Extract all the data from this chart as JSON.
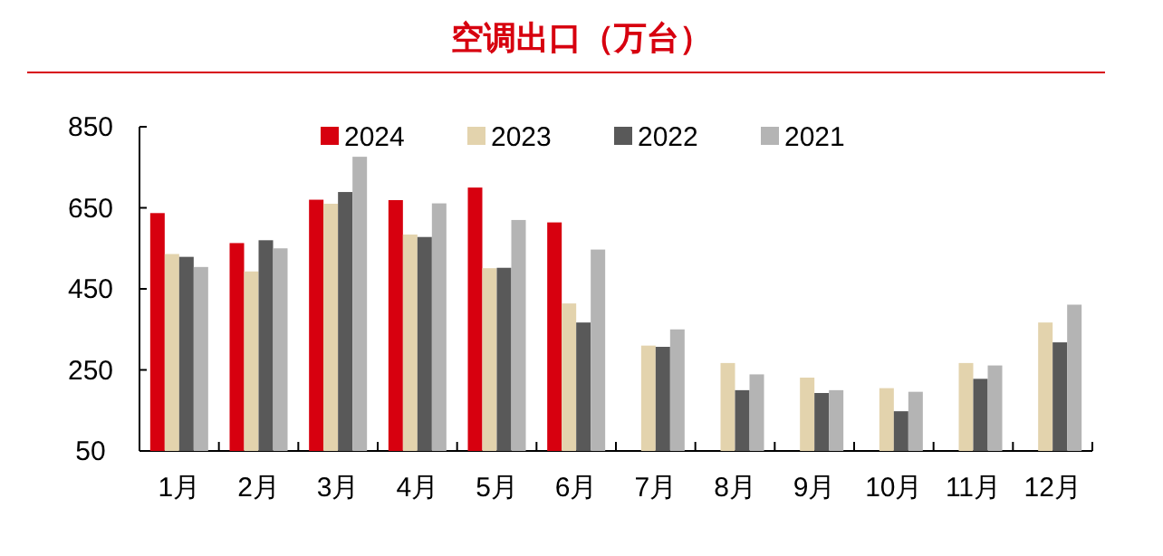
{
  "chart_data": {
    "type": "bar",
    "title": "空调出口（万台）",
    "categories": [
      "1月",
      "2月",
      "3月",
      "4月",
      "5月",
      "6月",
      "7月",
      "8月",
      "9月",
      "10月",
      "11月",
      "12月"
    ],
    "series": [
      {
        "name": "2024",
        "color": "#d7000f",
        "values": [
          637,
          563,
          670,
          669,
          700,
          614,
          null,
          null,
          null,
          null,
          null,
          null
        ]
      },
      {
        "name": "2023",
        "color": "#e3d3ad",
        "values": [
          536,
          493,
          660,
          584,
          501,
          414,
          310,
          267,
          231,
          205,
          267,
          367
        ]
      },
      {
        "name": "2022",
        "color": "#595959",
        "values": [
          529,
          570,
          689,
          578,
          502,
          367,
          307,
          200,
          193,
          148,
          228,
          318
        ]
      },
      {
        "name": "2021",
        "color": "#b4b4b4",
        "values": [
          504,
          550,
          776,
          661,
          620,
          547,
          350,
          239,
          200,
          196,
          261,
          411
        ]
      }
    ],
    "ylim": [
      50,
      850
    ],
    "yticks": [
      50,
      250,
      450,
      650,
      850
    ],
    "legend": "top"
  }
}
